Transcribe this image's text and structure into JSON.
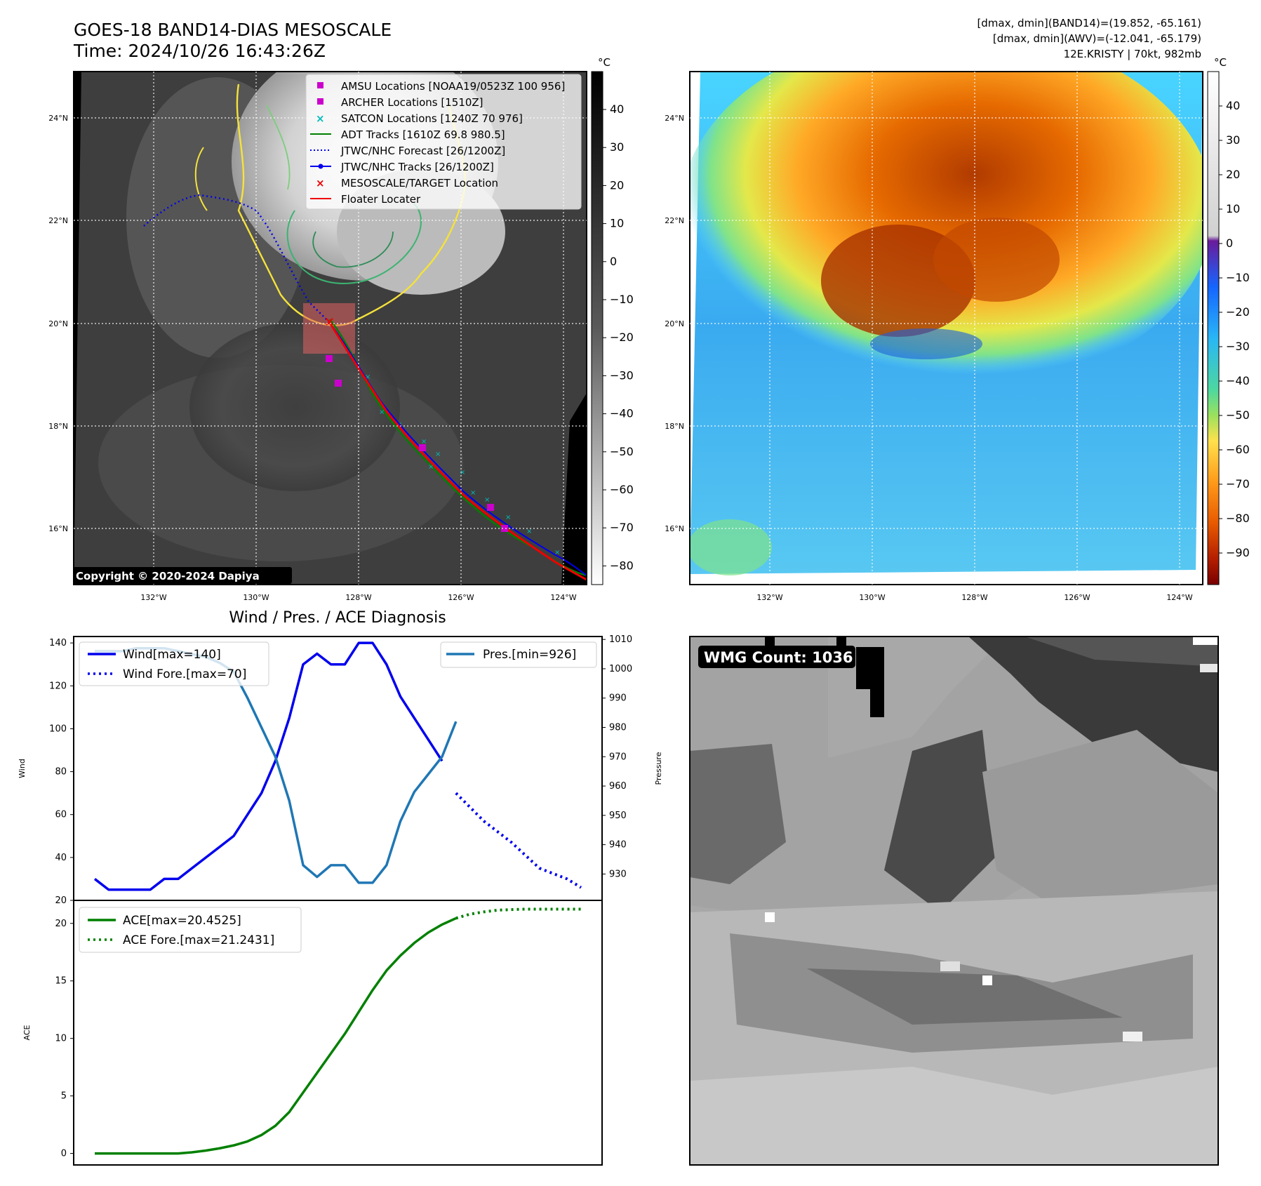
{
  "header": {
    "title_line1": "GOES-18 BAND14-DIAS MESOSCALE",
    "title_line2": "Time: 2024/10/26 16:43:26Z",
    "stats_line1": "[dmax, dmin](BAND14)=(19.852, -65.161)",
    "stats_line2": "[dmax, dmin](AWV)=(-12.041, -65.179)",
    "stats_line3": "12E.KRISTY | 70kt, 982mb"
  },
  "map_axes": {
    "lat_labels": [
      "24°N",
      "22°N",
      "20°N",
      "18°N",
      "16°N"
    ],
    "lon_labels": [
      "132°W",
      "130°W",
      "128°W",
      "126°W",
      "124°W"
    ]
  },
  "ir_panel": {
    "colorbar_unit": "°C",
    "colorbar_ticks": [
      "40",
      "30",
      "20",
      "10",
      "0",
      "−10",
      "−20",
      "−30",
      "−40",
      "−50",
      "−60",
      "−70",
      "−80"
    ],
    "copyright": "Copyright © 2020-2024 Dapiya",
    "legend": [
      {
        "label": "AMSU Locations [NOAA19/0523Z 100 956]",
        "marker": "square",
        "color": "#cc00cc"
      },
      {
        "label": "ARCHER Locations [1510Z]",
        "marker": "square",
        "color": "#cc00cc"
      },
      {
        "label": "SATCON Locations [1240Z 70 976]",
        "marker": "x",
        "color": "#00bbbb"
      },
      {
        "label": "ADT Tracks [1610Z 69.8 980.5]",
        "marker": "line",
        "color": "#008000"
      },
      {
        "label": "JTWC/NHC Forecast [26/1200Z]",
        "marker": "dotted",
        "color": "#0000ee"
      },
      {
        "label": "JTWC/NHC Tracks [26/1200Z]",
        "marker": "line-dot",
        "color": "#0000ee"
      },
      {
        "label": "MESOSCALE/TARGET Location",
        "marker": "x",
        "color": "#ee0000"
      },
      {
        "label": "Floater Locater",
        "marker": "line",
        "color": "#ee0000"
      }
    ]
  },
  "awv_panel": {
    "colorbar_unit": "°C",
    "colorbar_ticks": [
      "40",
      "30",
      "20",
      "10",
      "0",
      "−10",
      "−20",
      "−30",
      "−40",
      "−50",
      "−60",
      "−70",
      "−80",
      "−90"
    ]
  },
  "wmg_panel": {
    "label": "WMG Count: 1036"
  },
  "diagnosis": {
    "title": "Wind / Pres. / ACE Diagnosis"
  },
  "chart_data": [
    {
      "type": "line",
      "title": "Wind / Pres. / ACE Diagnosis",
      "xlabel": "",
      "ylabel": "Wind",
      "ylabel_right": "Pressure",
      "ylim": [
        20,
        143
      ],
      "ylim_right": [
        921,
        1011
      ],
      "yticks": [
        20,
        40,
        60,
        80,
        100,
        120,
        140
      ],
      "yticks_right": [
        930,
        940,
        950,
        960,
        970,
        980,
        990,
        1000,
        1010
      ],
      "x": [
        0,
        1,
        2,
        3,
        4,
        5,
        6,
        7,
        8,
        9,
        10,
        11,
        12,
        13,
        14,
        15,
        16,
        17,
        18,
        19,
        20,
        21,
        22,
        23,
        24,
        25,
        26,
        27,
        28,
        29,
        30,
        31,
        32,
        33,
        34,
        35
      ],
      "series": [
        {
          "name": "Wind[max=140]",
          "color": "#0000ee",
          "style": "solid",
          "axis": "left",
          "x": [
            0,
            1,
            2,
            3,
            4,
            5,
            6,
            7,
            8,
            9,
            10,
            11,
            12,
            13,
            14,
            15,
            16,
            17,
            18,
            19,
            20,
            21,
            22,
            23,
            24,
            25
          ],
          "values": [
            30,
            25,
            25,
            25,
            25,
            30,
            30,
            35,
            40,
            45,
            50,
            60,
            70,
            85,
            105,
            130,
            135,
            130,
            130,
            140,
            140,
            130,
            115,
            105,
            95,
            85
          ]
        },
        {
          "name": "Wind Fore.[max=70]",
          "color": "#0000ee",
          "style": "dotted",
          "axis": "left",
          "x": [
            26,
            28,
            30,
            32,
            34,
            35
          ],
          "values": [
            70,
            57,
            47,
            35,
            30,
            26
          ]
        },
        {
          "name": "Pres.[min=926]",
          "color": "#1f77b4",
          "style": "solid",
          "axis": "right",
          "x": [
            0,
            1,
            2,
            3,
            4,
            5,
            6,
            7,
            8,
            9,
            10,
            11,
            12,
            13,
            14,
            15,
            16,
            17,
            18,
            19,
            20,
            21,
            22,
            23,
            24,
            25,
            26
          ],
          "values": [
            1006,
            1006,
            1006,
            1007,
            1007,
            1007,
            1006,
            1005,
            1004,
            1002,
            999,
            990,
            980,
            970,
            955,
            933,
            929,
            933,
            933,
            927,
            927,
            933,
            948,
            958,
            964,
            970,
            982
          ]
        }
      ]
    },
    {
      "type": "line",
      "xlabel": "",
      "ylabel": "ACE",
      "ylim": [
        -1,
        22
      ],
      "yticks": [
        0,
        5,
        10,
        15,
        20
      ],
      "series": [
        {
          "name": "ACE[max=20.4525]",
          "color": "#008000",
          "style": "solid",
          "x": [
            0,
            1,
            2,
            3,
            4,
            5,
            6,
            7,
            8,
            9,
            10,
            11,
            12,
            13,
            14,
            15,
            16,
            17,
            18,
            19,
            20,
            21,
            22,
            23,
            24,
            25,
            26
          ],
          "values": [
            0,
            0,
            0,
            0,
            0,
            0,
            0,
            0.1,
            0.25,
            0.45,
            0.7,
            1.05,
            1.6,
            2.4,
            3.6,
            5.3,
            7.0,
            8.7,
            10.4,
            12.3,
            14.2,
            15.9,
            17.2,
            18.3,
            19.2,
            19.9,
            20.45
          ]
        },
        {
          "name": "ACE Fore.[max=21.2431]",
          "color": "#008000",
          "style": "dotted",
          "x": [
            26,
            27,
            28,
            29,
            30,
            31,
            32,
            33,
            34,
            35
          ],
          "values": [
            20.45,
            20.8,
            21.0,
            21.15,
            21.2,
            21.24,
            21.24,
            21.24,
            21.24,
            21.24
          ]
        }
      ]
    }
  ]
}
